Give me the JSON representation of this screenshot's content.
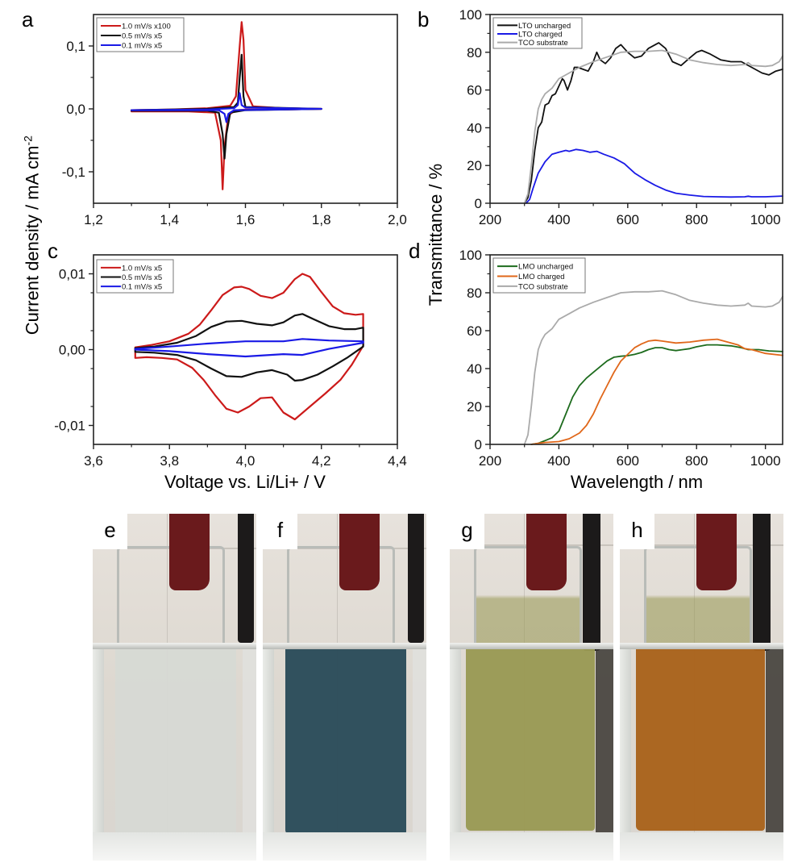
{
  "figure": {
    "y_label_current": "Current density / mA cm",
    "y_label_current_sup": "-2",
    "y_label_transmittance": "Transmittance / %",
    "x_label_voltage": "Voltage vs. Li/Li+ / V",
    "x_label_wavelength": "Wavelength / nm"
  },
  "photos": [
    {
      "label": "e",
      "description": "LTO uncharged, clear electrolyte",
      "liquid_color": "#d6d9d4"
    },
    {
      "label": "f",
      "description": "LTO charged, dark blue film",
      "liquid_color": "#2b4c5a"
    },
    {
      "label": "g",
      "description": "LMO uncharged, olive-yellow film",
      "liquid_color": "#9a9a55"
    },
    {
      "label": "h",
      "description": "LMO charged, orange-brown film",
      "liquid_color": "#a9631c"
    }
  ],
  "chart_data": [
    {
      "panel": "a",
      "type": "line",
      "xlabel": "",
      "ylabel": "",
      "xlim": [
        1.2,
        2.0
      ],
      "ylim": [
        -0.15,
        0.15
      ],
      "xticks": [
        1.2,
        1.4,
        1.6,
        1.8,
        2.0
      ],
      "xtick_labels": [
        "1,2",
        "1,4",
        "1,6",
        "1,8",
        "2,0"
      ],
      "yticks": [
        -0.1,
        0.0,
        0.1
      ],
      "ytick_labels": [
        "-0,1",
        "0,0",
        "0,1"
      ],
      "legend_position": "top-left",
      "series": [
        {
          "name": "1.0 mV/s  x100",
          "color": "#cc1a1a",
          "x": [
            1.3,
            1.45,
            1.52,
            1.535,
            1.54,
            1.545,
            1.555,
            1.57,
            1.58,
            1.6,
            1.7,
            1.8,
            1.8,
            1.7,
            1.62,
            1.6,
            1.595,
            1.59,
            1.585,
            1.575,
            1.56,
            1.5,
            1.4,
            1.3,
            1.3
          ],
          "y": [
            -0.004,
            -0.004,
            -0.006,
            -0.05,
            -0.128,
            -0.06,
            -0.01,
            -0.004,
            -0.002,
            -0.001,
            -0.001,
            0.0,
            0.0,
            0.001,
            0.004,
            0.03,
            0.11,
            0.138,
            0.1,
            0.02,
            0.005,
            0.001,
            -0.001,
            -0.002,
            -0.004
          ]
        },
        {
          "name": "0.5 mV/s  x5",
          "color": "#111111",
          "x": [
            1.3,
            1.5,
            1.53,
            1.54,
            1.545,
            1.55,
            1.56,
            1.6,
            1.8,
            1.8,
            1.6,
            1.595,
            1.59,
            1.585,
            1.58,
            1.57,
            1.5,
            1.3
          ],
          "y": [
            -0.003,
            -0.003,
            -0.006,
            -0.04,
            -0.079,
            -0.04,
            -0.006,
            -0.002,
            0.0,
            0.0,
            0.003,
            0.02,
            0.086,
            0.05,
            0.01,
            0.003,
            0.0,
            -0.002
          ]
        },
        {
          "name": "0.1 mV/s  x5",
          "color": "#1a1ae6",
          "x": [
            1.3,
            1.53,
            1.545,
            1.55,
            1.555,
            1.57,
            1.8,
            1.8,
            1.6,
            1.59,
            1.585,
            1.58,
            1.57,
            1.5,
            1.3
          ],
          "y": [
            -0.002,
            -0.002,
            -0.008,
            -0.021,
            -0.008,
            -0.002,
            0.0,
            0.0,
            0.002,
            0.006,
            0.025,
            0.006,
            0.001,
            -0.001,
            -0.002
          ]
        }
      ]
    },
    {
      "panel": "b",
      "type": "line",
      "xlabel": "",
      "ylabel": "",
      "xlim": [
        200,
        1050
      ],
      "ylim": [
        0,
        100
      ],
      "xticks": [
        200,
        400,
        600,
        800,
        1000
      ],
      "xtick_labels": [
        "200",
        "400",
        "600",
        "800",
        "1000"
      ],
      "yticks": [
        0,
        20,
        40,
        60,
        80,
        100
      ],
      "ytick_labels": [
        "0",
        "20",
        "40",
        "60",
        "80",
        "100"
      ],
      "legend_position": "top-left",
      "series": [
        {
          "name": "LTO uncharged",
          "color": "#111111",
          "x": [
            300,
            310,
            320,
            330,
            340,
            350,
            360,
            370,
            380,
            390,
            400,
            410,
            415,
            425,
            435,
            445,
            455,
            470,
            485,
            500,
            510,
            520,
            535,
            550,
            565,
            580,
            600,
            620,
            640,
            660,
            690,
            710,
            730,
            755,
            780,
            800,
            815,
            840,
            870,
            900,
            930,
            960,
            990,
            1010,
            1030,
            1050
          ],
          "y": [
            0,
            3,
            12,
            28,
            40,
            43,
            52,
            53,
            57,
            58,
            62,
            66,
            65,
            60,
            65,
            72,
            72,
            71,
            70,
            75,
            80,
            76,
            74,
            77,
            82,
            84,
            80,
            77,
            78,
            82,
            85,
            82,
            75,
            73,
            77,
            80,
            81,
            79,
            76,
            75,
            75,
            72,
            69,
            68,
            70,
            71
          ]
        },
        {
          "name": "LTO charged",
          "color": "#1a1ae6",
          "x": [
            305,
            315,
            325,
            340,
            360,
            380,
            400,
            420,
            430,
            450,
            470,
            490,
            510,
            530,
            560,
            590,
            620,
            650,
            680,
            710,
            740,
            780,
            820,
            860,
            900,
            940,
            950,
            960,
            1000,
            1050
          ],
          "y": [
            0,
            2,
            8,
            16,
            22,
            26,
            27,
            28,
            27.5,
            28.5,
            28,
            27,
            27.5,
            26,
            24,
            21,
            16,
            12.5,
            9.5,
            7,
            5.3,
            4.3,
            3.6,
            3.4,
            3.3,
            3.4,
            3.7,
            3.4,
            3.4,
            3.8
          ]
        },
        {
          "name": "TCO substrate",
          "color": "#aaaaaa",
          "x": [
            300,
            310,
            320,
            330,
            340,
            350,
            360,
            380,
            400,
            430,
            460,
            500,
            540,
            580,
            620,
            660,
            700,
            740,
            780,
            820,
            860,
            900,
            940,
            950,
            960,
            1000,
            1020,
            1040,
            1050
          ],
          "y": [
            0,
            5,
            20,
            38,
            50,
            55,
            58,
            61,
            66,
            69,
            72,
            75,
            77.5,
            80,
            80.5,
            80.5,
            81,
            79,
            76,
            74.5,
            73.5,
            73,
            73.5,
            74.5,
            73,
            72.5,
            73,
            75,
            78
          ]
        }
      ]
    },
    {
      "panel": "c",
      "type": "line",
      "xlabel": "",
      "ylabel": "",
      "xlim": [
        3.6,
        4.4
      ],
      "ylim": [
        -0.0125,
        0.0125
      ],
      "xticks": [
        3.6,
        3.8,
        4.0,
        4.2,
        4.4
      ],
      "xtick_labels": [
        "3,6",
        "3,8",
        "4,0",
        "4,2",
        "4,4"
      ],
      "yticks": [
        -0.01,
        0.0,
        0.01
      ],
      "ytick_labels": [
        "-0,01",
        "0,00",
        "0,01"
      ],
      "legend_position": "top-left",
      "series": [
        {
          "name": "1.0 mV/s  x5",
          "color": "#cc1a1a",
          "x": [
            3.71,
            3.75,
            3.8,
            3.85,
            3.88,
            3.91,
            3.94,
            3.97,
            3.99,
            4.01,
            4.04,
            4.07,
            4.1,
            4.13,
            4.15,
            4.17,
            4.2,
            4.23,
            4.26,
            4.29,
            4.31,
            4.31,
            4.28,
            4.25,
            4.21,
            4.17,
            4.13,
            4.1,
            4.07,
            4.04,
            4.01,
            3.98,
            3.95,
            3.92,
            3.89,
            3.86,
            3.82,
            3.78,
            3.74,
            3.71,
            3.71
          ],
          "y": [
            0.0003,
            0.0006,
            0.0011,
            0.0021,
            0.0033,
            0.0052,
            0.0072,
            0.0082,
            0.0083,
            0.008,
            0.0071,
            0.0068,
            0.0075,
            0.0093,
            0.01,
            0.0096,
            0.0076,
            0.0057,
            0.0048,
            0.0046,
            0.0047,
            0.0005,
            -0.002,
            -0.004,
            -0.0058,
            -0.0075,
            -0.0092,
            -0.0083,
            -0.0063,
            -0.0064,
            -0.0075,
            -0.0083,
            -0.0078,
            -0.006,
            -0.004,
            -0.0024,
            -0.0013,
            -0.0011,
            -0.001,
            -0.0011,
            0.0003
          ]
        },
        {
          "name": "0.5 mV/s  x5",
          "color": "#111111",
          "x": [
            3.71,
            3.76,
            3.82,
            3.87,
            3.91,
            3.95,
            3.99,
            4.03,
            4.07,
            4.1,
            4.13,
            4.15,
            4.18,
            4.22,
            4.26,
            4.29,
            4.31,
            4.31,
            4.27,
            4.23,
            4.19,
            4.15,
            4.13,
            4.11,
            4.07,
            4.03,
            3.99,
            3.95,
            3.91,
            3.87,
            3.82,
            3.76,
            3.71,
            3.71
          ],
          "y": [
            0.0002,
            0.0004,
            0.0009,
            0.0018,
            0.003,
            0.0037,
            0.0038,
            0.0034,
            0.0032,
            0.0036,
            0.0045,
            0.0047,
            0.004,
            0.0031,
            0.0027,
            0.0027,
            0.0029,
            0.0004,
            -0.001,
            -0.0022,
            -0.0033,
            -0.004,
            -0.0041,
            -0.0033,
            -0.0027,
            -0.003,
            -0.0036,
            -0.0035,
            -0.0025,
            -0.0014,
            -0.0007,
            -0.0004,
            -0.0003,
            0.0002
          ]
        },
        {
          "name": "0.1 mV/s  x5",
          "color": "#1a1ae6",
          "x": [
            3.71,
            3.8,
            3.9,
            4.0,
            4.1,
            4.15,
            4.22,
            4.31,
            4.31,
            4.22,
            4.15,
            4.1,
            4.0,
            3.9,
            3.8,
            3.71,
            3.71
          ],
          "y": [
            0.0001,
            0.0004,
            0.0008,
            0.0011,
            0.0011,
            0.0014,
            0.0012,
            0.0011,
            0.0009,
            0.0001,
            -0.0007,
            -0.0006,
            -0.0009,
            -0.0006,
            -0.0002,
            0.0,
            0.0001
          ]
        }
      ]
    },
    {
      "panel": "d",
      "type": "line",
      "xlabel": "Wavelength / nm",
      "ylabel": "Transmittance / %",
      "xlim": [
        200,
        1050
      ],
      "ylim": [
        0,
        100
      ],
      "xticks": [
        200,
        400,
        600,
        800,
        1000
      ],
      "xtick_labels": [
        "200",
        "400",
        "600",
        "800",
        "1000"
      ],
      "yticks": [
        0,
        20,
        40,
        60,
        80,
        100
      ],
      "ytick_labels": [
        "0",
        "20",
        "40",
        "60",
        "80",
        "100"
      ],
      "legend_position": "top-left",
      "series": [
        {
          "name": "LMO uncharged",
          "color": "#1d6b1d",
          "x": [
            320,
            340,
            360,
            380,
            400,
            420,
            440,
            460,
            480,
            500,
            520,
            540,
            560,
            580,
            600,
            620,
            640,
            660,
            680,
            700,
            720,
            740,
            760,
            780,
            800,
            830,
            860,
            900,
            930,
            950,
            980,
            1010,
            1050
          ],
          "y": [
            0,
            0.6,
            2,
            3.5,
            7,
            16,
            25,
            31,
            35,
            38,
            41,
            44,
            46,
            46.5,
            46.8,
            47.5,
            48.5,
            50,
            51,
            51,
            50,
            49.5,
            50,
            50.5,
            51.5,
            52.5,
            52.5,
            52,
            51,
            50,
            50,
            49.3,
            49
          ]
        },
        {
          "name": "LMO charged",
          "color": "#e0671a",
          "x": [
            320,
            340,
            360,
            400,
            430,
            460,
            480,
            500,
            520,
            540,
            560,
            580,
            600,
            620,
            640,
            660,
            680,
            700,
            740,
            780,
            820,
            860,
            900,
            920,
            940,
            960,
            1000,
            1050
          ],
          "y": [
            0,
            0.6,
            1,
            1.5,
            3,
            6,
            10,
            16,
            24,
            31,
            38,
            44,
            47.5,
            51,
            53,
            54.5,
            55,
            54.5,
            53.5,
            54,
            55,
            55.5,
            53.5,
            52.5,
            50.5,
            50,
            48,
            47
          ]
        },
        {
          "name": "TCO substrate",
          "color": "#aaaaaa",
          "x": [
            300,
            310,
            320,
            330,
            340,
            350,
            360,
            380,
            400,
            430,
            460,
            500,
            540,
            580,
            620,
            660,
            700,
            740,
            780,
            820,
            860,
            900,
            940,
            950,
            960,
            1000,
            1020,
            1040,
            1050
          ],
          "y": [
            0,
            5,
            20,
            38,
            50,
            55,
            58,
            61,
            66,
            69,
            72,
            75,
            77.5,
            80,
            80.5,
            80.5,
            81,
            79,
            76,
            74.5,
            73.5,
            73,
            73.5,
            74.5,
            73,
            72.5,
            73,
            75,
            78
          ]
        }
      ]
    }
  ]
}
